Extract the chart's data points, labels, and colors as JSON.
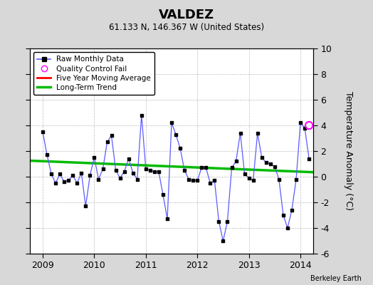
{
  "title": "VALDEZ",
  "subtitle": "61.133 N, 146.367 W (United States)",
  "ylabel": "Temperature Anomaly (°C)",
  "credit": "Berkeley Earth",
  "xlim": [
    2008.75,
    2014.25
  ],
  "ylim": [
    -6,
    10
  ],
  "yticks": [
    -6,
    -4,
    -2,
    0,
    2,
    4,
    6,
    8,
    10
  ],
  "xticks": [
    2009,
    2010,
    2011,
    2012,
    2013,
    2014
  ],
  "bg_color": "#d8d8d8",
  "plot_bg_color": "#ffffff",
  "raw_x": [
    2009.0,
    2009.083,
    2009.167,
    2009.25,
    2009.333,
    2009.417,
    2009.5,
    2009.583,
    2009.667,
    2009.75,
    2009.833,
    2009.917,
    2010.0,
    2010.083,
    2010.167,
    2010.25,
    2010.333,
    2010.417,
    2010.5,
    2010.583,
    2010.667,
    2010.75,
    2010.833,
    2010.917,
    2011.0,
    2011.083,
    2011.167,
    2011.25,
    2011.333,
    2011.417,
    2011.5,
    2011.583,
    2011.667,
    2011.75,
    2011.833,
    2011.917,
    2012.0,
    2012.083,
    2012.167,
    2012.25,
    2012.333,
    2012.417,
    2012.5,
    2012.583,
    2012.667,
    2012.75,
    2012.833,
    2012.917,
    2013.0,
    2013.083,
    2013.167,
    2013.25,
    2013.333,
    2013.417,
    2013.5,
    2013.583,
    2013.667,
    2013.75,
    2013.833,
    2013.917,
    2014.0,
    2014.083,
    2014.167
  ],
  "raw_y": [
    3.5,
    1.7,
    0.2,
    -0.5,
    0.2,
    -0.4,
    -0.3,
    0.1,
    -0.5,
    0.3,
    -2.3,
    0.1,
    1.5,
    -0.2,
    0.6,
    2.7,
    3.2,
    0.5,
    -0.1,
    0.4,
    1.4,
    0.3,
    -0.2,
    4.8,
    0.6,
    0.5,
    0.4,
    0.4,
    -1.4,
    -3.3,
    4.2,
    3.3,
    2.2,
    0.5,
    -0.2,
    -0.3,
    -0.3,
    0.7,
    0.7,
    -0.5,
    -0.3,
    -3.5,
    -5.0,
    -3.5,
    0.7,
    1.2,
    3.4,
    0.2,
    -0.1,
    -0.3,
    3.4,
    1.5,
    1.1,
    1.0,
    0.8,
    -0.2,
    -3.0,
    -4.0,
    -2.6,
    -0.2,
    4.2,
    3.8,
    1.4
  ],
  "qc_fail_x": [
    2014.167
  ],
  "qc_fail_y": [
    4.0
  ],
  "trend_x": [
    2008.75,
    2014.25
  ],
  "trend_y": [
    1.25,
    0.35
  ],
  "line_color": "#5b5bff",
  "marker_color": "black",
  "trend_color": "#00bb00",
  "ma_color": "red",
  "qc_color": "magenta"
}
